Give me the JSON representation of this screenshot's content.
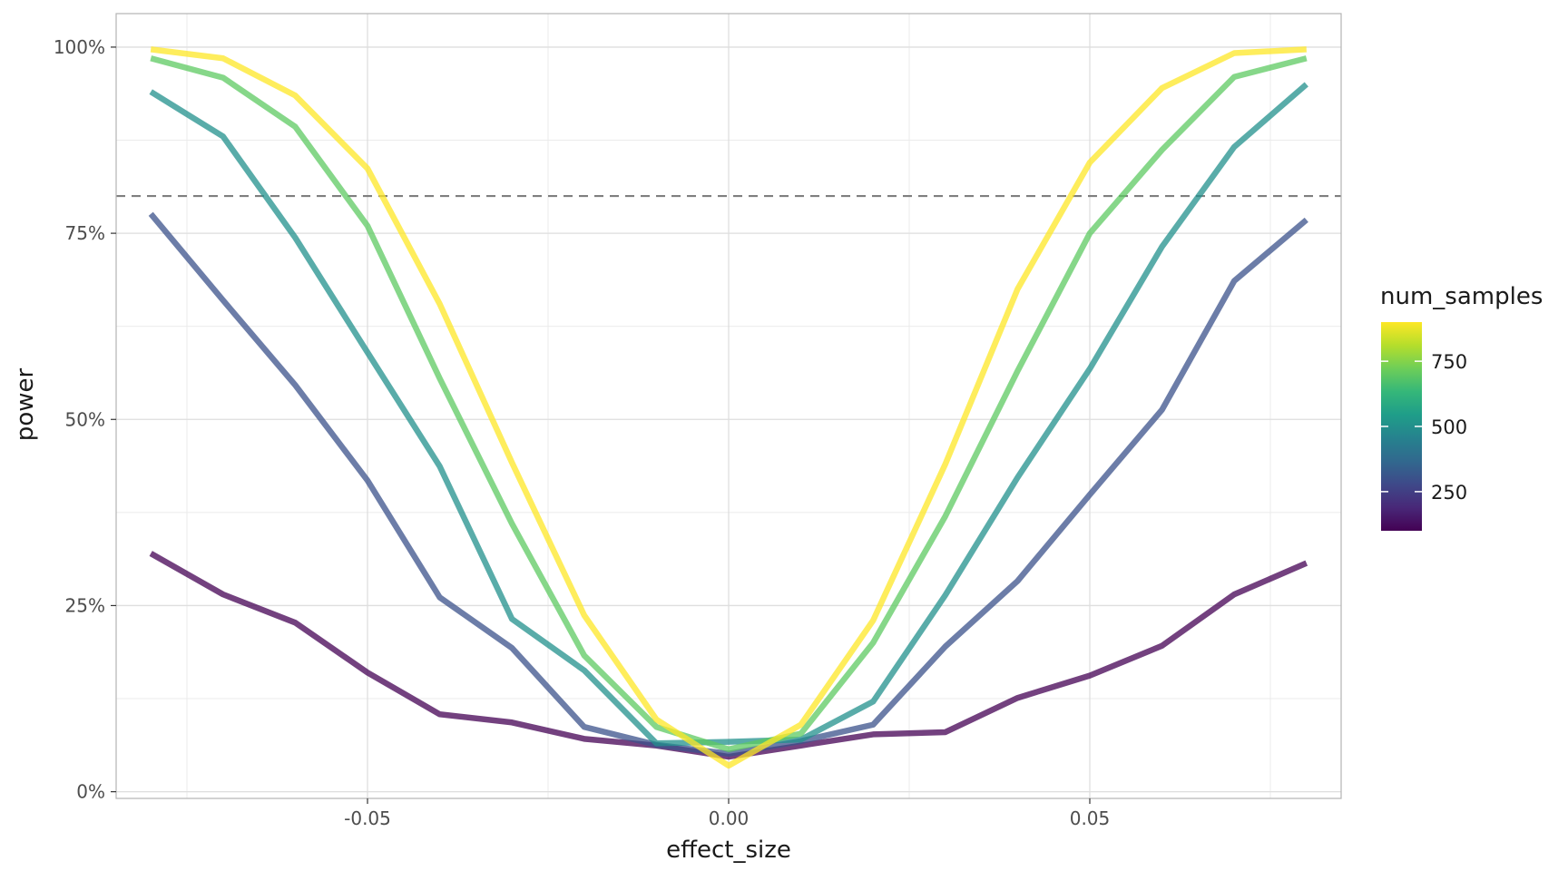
{
  "chart_data": {
    "type": "line",
    "title": "",
    "xlabel": "effect_size",
    "ylabel": "power",
    "xlim": [
      -0.0848,
      0.0848
    ],
    "ylim": [
      -0.009,
      1.045
    ],
    "x_ticks": [
      {
        "value": -0.05,
        "label": "-0.05"
      },
      {
        "value": 0.0,
        "label": "0.00"
      },
      {
        "value": 0.05,
        "label": "0.05"
      }
    ],
    "y_ticks": [
      {
        "value": 0.0,
        "label": "0%"
      },
      {
        "value": 0.25,
        "label": "25%"
      },
      {
        "value": 0.5,
        "label": "50%"
      },
      {
        "value": 0.75,
        "label": "75%"
      },
      {
        "value": 1.0,
        "label": "100%"
      }
    ],
    "reference_line": {
      "y": 0.8,
      "style": "dashed",
      "color": "#7f7f7f"
    },
    "x": [
      -0.08,
      -0.07,
      -0.06,
      -0.05,
      -0.04,
      -0.03,
      -0.02,
      -0.01,
      0.0,
      0.01,
      0.02,
      0.03,
      0.04,
      0.05,
      0.06,
      0.07,
      0.08
    ],
    "series": [
      {
        "name": "100",
        "num_samples": 100,
        "color": "#440154",
        "values": [
          0.32,
          0.265,
          0.227,
          0.16,
          0.104,
          0.093,
          0.071,
          0.062,
          0.047,
          0.062,
          0.077,
          0.08,
          0.126,
          0.156,
          0.196,
          0.265,
          0.307
        ]
      },
      {
        "name": "300",
        "num_samples": 300,
        "color": "#3b528b",
        "values": [
          0.776,
          0.66,
          0.546,
          0.418,
          0.261,
          0.193,
          0.087,
          0.063,
          0.051,
          0.068,
          0.09,
          0.195,
          0.283,
          0.399,
          0.513,
          0.686,
          0.768
        ]
      },
      {
        "name": "500",
        "num_samples": 500,
        "color": "#21908c",
        "values": [
          0.94,
          0.88,
          0.744,
          0.59,
          0.437,
          0.232,
          0.163,
          0.065,
          0.067,
          0.07,
          0.121,
          0.264,
          0.422,
          0.568,
          0.732,
          0.866,
          0.95
        ]
      },
      {
        "name": "750",
        "num_samples": 750,
        "color": "#5ec962",
        "values": [
          0.985,
          0.959,
          0.893,
          0.76,
          0.555,
          0.36,
          0.183,
          0.087,
          0.057,
          0.078,
          0.2,
          0.37,
          0.565,
          0.75,
          0.862,
          0.96,
          0.985
        ]
      },
      {
        "name": "900",
        "num_samples": 900,
        "color": "#fde725",
        "values": [
          0.997,
          0.985,
          0.935,
          0.837,
          0.655,
          0.442,
          0.237,
          0.097,
          0.035,
          0.09,
          0.23,
          0.44,
          0.675,
          0.845,
          0.945,
          0.992,
          0.997
        ]
      }
    ],
    "line_opacity": 0.75,
    "legend": {
      "title": "num_samples",
      "type": "colorbar",
      "placement": "right",
      "range": [
        100,
        900
      ],
      "breaks": [
        250,
        500,
        750
      ],
      "gradient": [
        "#440154",
        "#482878",
        "#3e4989",
        "#31688e",
        "#26828e",
        "#1f9e89",
        "#35b779",
        "#6ece58",
        "#b5de2b",
        "#fde725"
      ]
    },
    "grid": true
  }
}
